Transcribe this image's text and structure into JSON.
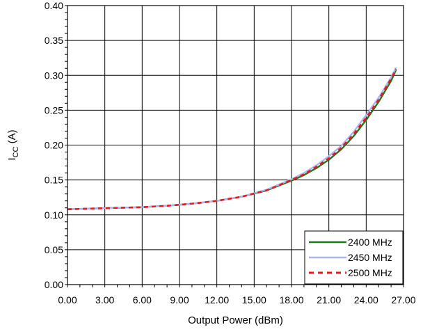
{
  "chart_data": {
    "type": "line",
    "title": "",
    "xlabel": "Output Power (dBm)",
    "ylabel_main": "I",
    "ylabel_sub": "CC",
    "ylabel_unit": " (A)",
    "xlim": [
      0,
      27
    ],
    "ylim": [
      0,
      0.4
    ],
    "xticks": [
      "0.00",
      "3.00",
      "6.00",
      "9.00",
      "12.00",
      "15.00",
      "18.00",
      "21.00",
      "24.00",
      "27.00"
    ],
    "yticks": [
      "0.00",
      "0.05",
      "0.10",
      "0.15",
      "0.20",
      "0.25",
      "0.30",
      "0.35",
      "0.40"
    ],
    "grid": true,
    "legend_position": "bottom-right",
    "series": [
      {
        "name": "2400 MHz",
        "color": "#1a7a1a",
        "style": "solid",
        "x": [
          0,
          2,
          4,
          6,
          8,
          10,
          12,
          14,
          16,
          18,
          19,
          20,
          21,
          22,
          23,
          24,
          25,
          26,
          26.4
        ],
        "y": [
          0.108,
          0.109,
          0.11,
          0.111,
          0.113,
          0.116,
          0.12,
          0.126,
          0.135,
          0.149,
          0.157,
          0.167,
          0.179,
          0.194,
          0.213,
          0.236,
          0.262,
          0.292,
          0.308
        ]
      },
      {
        "name": "2450 MHz",
        "color": "#aab4ee",
        "style": "solid",
        "x": [
          0,
          2,
          4,
          6,
          8,
          10,
          12,
          14,
          16,
          18,
          19,
          20,
          21,
          22,
          23,
          24,
          25,
          26,
          26.4
        ],
        "y": [
          0.108,
          0.109,
          0.11,
          0.111,
          0.113,
          0.116,
          0.12,
          0.126,
          0.136,
          0.151,
          0.16,
          0.171,
          0.184,
          0.199,
          0.219,
          0.243,
          0.268,
          0.297,
          0.311
        ]
      },
      {
        "name": "2500 MHz",
        "color": "#e8181c",
        "style": "dashed",
        "x": [
          0,
          2,
          4,
          6,
          8,
          10,
          12,
          14,
          16,
          18,
          19,
          20,
          21,
          22,
          23,
          24,
          25,
          26,
          26.4
        ],
        "y": [
          0.108,
          0.109,
          0.11,
          0.111,
          0.113,
          0.116,
          0.12,
          0.126,
          0.135,
          0.15,
          0.158,
          0.169,
          0.181,
          0.196,
          0.216,
          0.239,
          0.265,
          0.295,
          0.309
        ]
      }
    ]
  }
}
